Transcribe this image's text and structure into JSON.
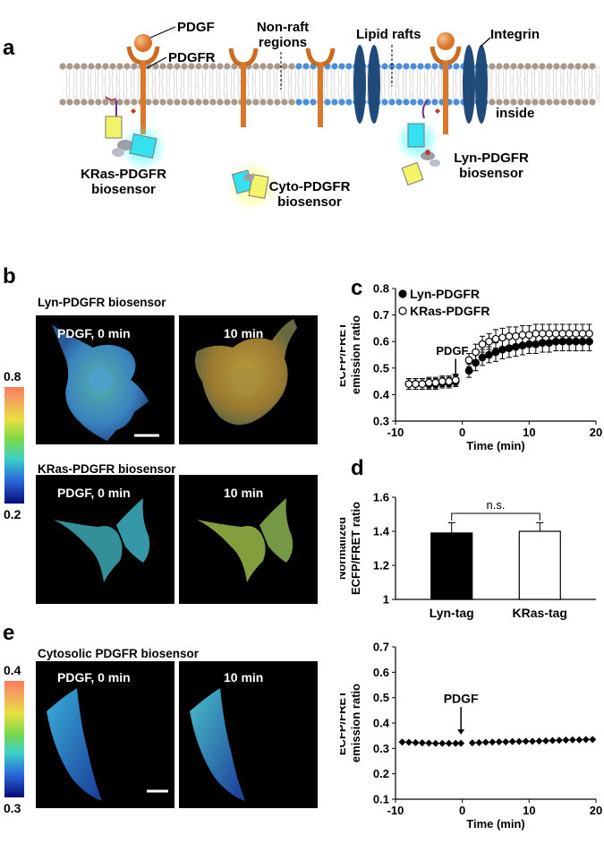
{
  "panels": {
    "a": "a",
    "b": "b",
    "c": "c",
    "d": "d",
    "e": "e"
  },
  "panel_a": {
    "pdgf": "PDGF",
    "pdgfr": "PDGFR",
    "non_raft_1": "Non-raft",
    "non_raft_2": "regions",
    "lipid_rafts": "Lipid rafts",
    "integrin": "Integrin",
    "inside": "inside",
    "kras_1": "KRas-PDGFR",
    "kras_2": "biosensor",
    "cyto_1": "Cyto-PDGFR",
    "cyto_2": "biosensor",
    "lyn_1": "Lyn-PDGFR",
    "lyn_2": "biosensor"
  },
  "panel_b": {
    "lyn_header": "Lyn-PDGFR biosensor",
    "kras_header": "KRas-PDGFR biosensor",
    "cell_0min": "PDGF, 0 min",
    "cell_10min": "10 min",
    "scale_max": "0.8",
    "scale_min": "0.2"
  },
  "panel_e": {
    "header": "Cytosolic PDGFR biosensor",
    "cell_0min": "PDGF, 0 min",
    "cell_10min": "10 min",
    "scale_max": "0.4",
    "scale_min": "0.3"
  },
  "chart_data": [
    {
      "id": "c",
      "type": "scatter",
      "xlabel": "Time (min)",
      "ylabel_1": "ECFP/FRET",
      "ylabel_2": "emission ratio",
      "xlim": [
        -10,
        20
      ],
      "ylim": [
        0.3,
        0.8
      ],
      "xticks": [
        "-10",
        "0",
        "10",
        "20"
      ],
      "yticks": [
        "0.3",
        "0.4",
        "0.5",
        "0.6",
        "0.7",
        "0.8"
      ],
      "annotation": "PDGF",
      "x": [
        -8,
        -7,
        -6,
        -5,
        -4,
        -3,
        -2,
        -1,
        1,
        2,
        3,
        4,
        5,
        6,
        7,
        8,
        9,
        10,
        11,
        12,
        13,
        14,
        15,
        16,
        17,
        18,
        19
      ],
      "series": [
        {
          "name": "Lyn-PDGFR",
          "marker": "filled-circle",
          "values": [
            0.44,
            0.44,
            0.44,
            0.44,
            0.44,
            0.445,
            0.445,
            0.45,
            0.49,
            0.52,
            0.54,
            0.55,
            0.56,
            0.57,
            0.575,
            0.58,
            0.585,
            0.59,
            0.59,
            0.595,
            0.595,
            0.6,
            0.6,
            0.6,
            0.6,
            0.6,
            0.6
          ],
          "err": [
            0.02,
            0.02,
            0.02,
            0.02,
            0.02,
            0.02,
            0.02,
            0.02,
            0.025,
            0.03,
            0.03,
            0.03,
            0.035,
            0.035,
            0.035,
            0.035,
            0.035,
            0.035,
            0.035,
            0.035,
            0.035,
            0.035,
            0.035,
            0.035,
            0.035,
            0.035,
            0.035
          ]
        },
        {
          "name": "KRas-PDGFR",
          "marker": "open-circle",
          "values": [
            0.44,
            0.44,
            0.44,
            0.445,
            0.445,
            0.45,
            0.45,
            0.455,
            0.53,
            0.56,
            0.59,
            0.6,
            0.61,
            0.615,
            0.62,
            0.62,
            0.625,
            0.625,
            0.63,
            0.63,
            0.63,
            0.63,
            0.63,
            0.63,
            0.63,
            0.63,
            0.63
          ],
          "err": [
            0.02,
            0.02,
            0.02,
            0.02,
            0.02,
            0.02,
            0.02,
            0.02,
            0.025,
            0.03,
            0.03,
            0.03,
            0.035,
            0.035,
            0.035,
            0.035,
            0.035,
            0.035,
            0.035,
            0.035,
            0.035,
            0.035,
            0.035,
            0.035,
            0.035,
            0.035,
            0.035
          ]
        }
      ]
    },
    {
      "id": "d",
      "type": "bar",
      "ylabel_1": "Normalized",
      "ylabel_2": "ECFP/FRET ratio",
      "categories": [
        "Lyn-tag",
        "KRas-tag"
      ],
      "values": [
        1.39,
        1.4
      ],
      "err": [
        0.06,
        0.05
      ],
      "colors": [
        "#000000",
        "#ffffff"
      ],
      "ylim": [
        1.0,
        1.6
      ],
      "yticks": [
        "1",
        "1.2",
        "1.4",
        "1.6"
      ],
      "annotation": "n.s."
    },
    {
      "id": "e",
      "type": "scatter",
      "xlabel": "Time (min)",
      "ylabel_1": "ECFP/FRET",
      "ylabel_2": "emission ratio",
      "xlim": [
        -10,
        20
      ],
      "ylim": [
        0.1,
        0.7
      ],
      "xticks": [
        "-10",
        "0",
        "10",
        "20"
      ],
      "yticks": [
        "0.1",
        "0.2",
        "0.3",
        "0.4",
        "0.5",
        "0.6",
        "0.7"
      ],
      "annotation": "PDGF",
      "x": [
        -9,
        -8,
        -7,
        -6,
        -5,
        -4,
        -3,
        -2,
        -1,
        -0.2,
        1.5,
        2.5,
        3.5,
        4.5,
        5.5,
        6.5,
        7.5,
        8.5,
        9.5,
        10.5,
        11.5,
        12.5,
        13.5,
        14.5,
        15.5,
        16.5,
        17.5,
        18.5,
        19.5
      ],
      "series": [
        {
          "name": "",
          "marker": "diamond",
          "values": [
            0.325,
            0.324,
            0.323,
            0.322,
            0.321,
            0.32,
            0.32,
            0.32,
            0.32,
            0.32,
            0.322,
            0.323,
            0.324,
            0.325,
            0.326,
            0.326,
            0.327,
            0.327,
            0.328,
            0.328,
            0.329,
            0.33,
            0.331,
            0.332,
            0.333,
            0.334,
            0.334,
            0.335,
            0.335
          ]
        }
      ]
    }
  ]
}
